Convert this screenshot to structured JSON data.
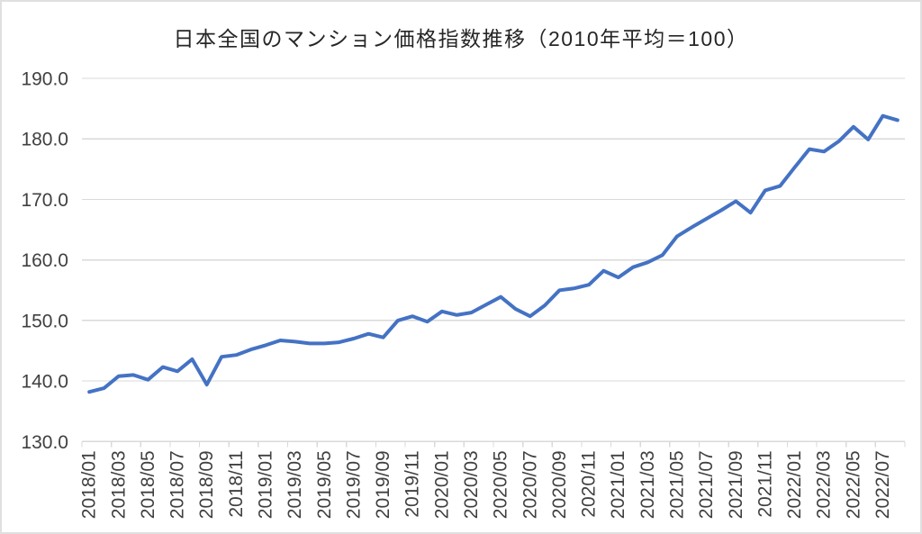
{
  "chart_data": {
    "type": "line",
    "title": "日本全国のマンション価格指数推移（2010年平均＝100）",
    "x": [
      "2018/01",
      "2018/02",
      "2018/03",
      "2018/04",
      "2018/05",
      "2018/06",
      "2018/07",
      "2018/08",
      "2018/09",
      "2018/10",
      "2018/11",
      "2018/12",
      "2019/01",
      "2019/02",
      "2019/03",
      "2019/04",
      "2019/05",
      "2019/06",
      "2019/07",
      "2019/08",
      "2019/09",
      "2019/10",
      "2019/11",
      "2019/12",
      "2020/01",
      "2020/02",
      "2020/03",
      "2020/04",
      "2020/05",
      "2020/06",
      "2020/07",
      "2020/08",
      "2020/09",
      "2020/10",
      "2020/11",
      "2020/12",
      "2021/01",
      "2021/02",
      "2021/03",
      "2021/04",
      "2021/05",
      "2021/06",
      "2021/07",
      "2021/08",
      "2021/09",
      "2021/10",
      "2021/11",
      "2021/12",
      "2022/01",
      "2022/02",
      "2022/03",
      "2022/04",
      "2022/05",
      "2022/06",
      "2022/07",
      "2022/08"
    ],
    "values": [
      138.2,
      138.8,
      140.8,
      141.0,
      140.2,
      142.3,
      141.6,
      143.6,
      139.4,
      144.0,
      144.3,
      145.2,
      145.9,
      146.7,
      146.5,
      146.2,
      146.2,
      146.4,
      147.0,
      147.8,
      147.2,
      150.0,
      150.7,
      149.8,
      151.5,
      150.9,
      151.3,
      152.6,
      153.9,
      151.9,
      150.7,
      152.5,
      155.0,
      155.3,
      155.9,
      158.2,
      157.1,
      158.8,
      159.6,
      160.8,
      163.9,
      165.4,
      166.8,
      168.2,
      169.7,
      167.8,
      171.5,
      172.2,
      175.3,
      178.3,
      177.9,
      179.6,
      182.0,
      179.9,
      183.8,
      183.1
    ],
    "ylim": [
      130,
      190
    ],
    "y_ticks": [
      "190.0",
      "180.0",
      "170.0",
      "160.0",
      "150.0",
      "140.0",
      "130.0"
    ],
    "x_tick_interval": 2,
    "grid": true,
    "legend": "none",
    "line_color": "#4472C4",
    "grid_color": "#D9D9D9",
    "axis_text_color": "#404040",
    "title_color": "#262626",
    "background": "#FFFFFF"
  }
}
